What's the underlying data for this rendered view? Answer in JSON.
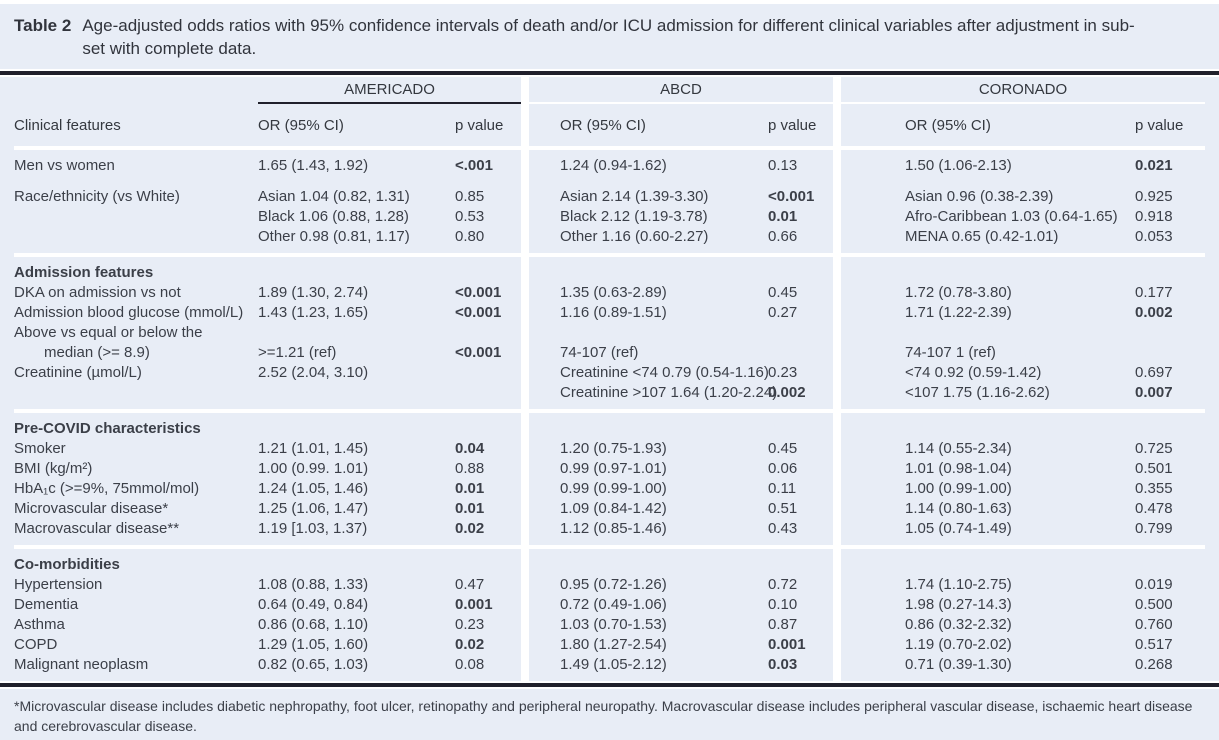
{
  "title": {
    "label": "Table 2",
    "caption": "Age-adjusted odds ratios with 95% confidence intervals of death and/or ICU admission for different clinical variables after adjustment in sub-set with complete data."
  },
  "groups": [
    "AMERICADO",
    "ABCD",
    "CORONADO"
  ],
  "columns": {
    "feature": "Clinical features",
    "or": "OR (95% CI)",
    "p": "p value"
  },
  "sections": [
    {
      "header": null,
      "rows": [
        {
          "label": "Men vs women",
          "a_or": "1.65 (1.43, 1.92)",
          "a_p": "<.001",
          "a_pb": true,
          "b_or": "1.24 (0.94-1.62)",
          "b_p": "0.13",
          "c_or": "1.50 (1.06-2.13)",
          "c_p": "0.021",
          "c_pb": true
        },
        {
          "spacer": true
        },
        {
          "label": "Race/ethnicity (vs White)",
          "a_or": "Asian 1.04 (0.82, 1.31)",
          "a_p": "0.85",
          "b_or": "Asian 2.14 (1.39-3.30)",
          "b_p": "<0.001",
          "b_pb": true,
          "c_or": "Asian 0.96 (0.38-2.39)",
          "c_p": "0.925"
        },
        {
          "label": "",
          "a_or": "Black 1.06 (0.88, 1.28)",
          "a_p": "0.53",
          "b_or": "Black 2.12 (1.19-3.78)",
          "b_p": "0.01",
          "b_pb": true,
          "c_or": "Afro-Caribbean 1.03 (0.64-1.65)",
          "c_p": "0.918"
        },
        {
          "label": "",
          "a_or": "Other 0.98 (0.81, 1.17)",
          "a_p": "0.80",
          "b_or": "Other 1.16 (0.60-2.27)",
          "b_p": "0.66",
          "c_or": "MENA 0.65 (0.42-1.01)",
          "c_p": "0.053"
        }
      ]
    },
    {
      "header": "Admission features",
      "rows": [
        {
          "label": "DKA on admission vs not",
          "a_or": "1.89 (1.30, 2.74)",
          "a_p": "<0.001",
          "a_pb": true,
          "b_or": "1.35 (0.63-2.89)",
          "b_p": "0.45",
          "c_or": "1.72 (0.78-3.80)",
          "c_p": "0.177"
        },
        {
          "label": "Admission blood glucose (mmol/L)",
          "a_or": "1.43 (1.23, 1.65)",
          "a_p": "<0.001",
          "a_pb": true,
          "b_or": "1.16 (0.89-1.51)",
          "b_p": "0.27",
          "c_or": "1.71 (1.22-2.39)",
          "c_p": "0.002",
          "c_pb": true
        },
        {
          "label": "Above vs equal or below the"
        },
        {
          "label": "median (>= 8.9)",
          "indent": true,
          "a_or": ">=1.21 (ref)",
          "a_p": "<0.001",
          "a_pb": true,
          "b_or": "74-107 (ref)",
          "c_or": "74-107 1 (ref)"
        },
        {
          "label": "Creatinine (µmol/L)",
          "a_or": "2.52 (2.04, 3.10)",
          "b_or": "Creatinine <74 0.79 (0.54-1.16)",
          "b_p": "0.23",
          "c_or": "<74 0.92 (0.59-1.42)",
          "c_p": "0.697"
        },
        {
          "label": "",
          "b_or": "Creatinine >107 1.64 (1.20-2.24)",
          "b_p": "0.002",
          "b_pb": true,
          "c_or": "<107 1.75 (1.16-2.62)",
          "c_p": "0.007",
          "c_pb": true
        }
      ]
    },
    {
      "header": "Pre-COVID characteristics",
      "rows": [
        {
          "label": "Smoker",
          "a_or": "1.21 (1.01, 1.45)",
          "a_p": "0.04",
          "a_pb": true,
          "b_or": "1.20 (0.75-1.93)",
          "b_p": "0.45",
          "c_or": "1.14 (0.55-2.34)",
          "c_p": "0.725"
        },
        {
          "label": "BMI (kg/m²)",
          "a_or": "1.00 (0.99. 1.01)",
          "a_p": "0.88",
          "b_or": "0.99 (0.97-1.01)",
          "b_p": "0.06",
          "c_or": "1.01 (0.98-1.04)",
          "c_p": "0.501"
        },
        {
          "label": "HbA₁c (>=9%, 75mmol/mol)",
          "a_or": "1.24 (1.05, 1.46)",
          "a_p": "0.01",
          "a_pb": true,
          "b_or": "0.99 (0.99-1.00)",
          "b_p": "0.11",
          "c_or": "1.00 (0.99-1.00)",
          "c_p": "0.355"
        },
        {
          "label": "Microvascular disease*",
          "a_or": "1.25 (1.06, 1.47)",
          "a_p": "0.01",
          "a_pb": true,
          "b_or": "1.09 (0.84-1.42)",
          "b_p": "0.51",
          "c_or": "1.14 (0.80-1.63)",
          "c_p": "0.478"
        },
        {
          "label": "Macrovascular disease**",
          "a_or": "1.19 [1.03, 1.37)",
          "a_p": "0.02",
          "a_pb": true,
          "b_or": "1.12 (0.85-1.46)",
          "b_p": "0.43",
          "c_or": "1.05 (0.74-1.49)",
          "c_p": "0.799"
        }
      ]
    },
    {
      "header": "Co-morbidities",
      "rows": [
        {
          "label": "Hypertension",
          "a_or": "1.08 (0.88, 1.33)",
          "a_p": "0.47",
          "b_or": "0.95 (0.72-1.26)",
          "b_p": "0.72",
          "c_or": "1.74 (1.10-2.75)",
          "c_p": "0.019"
        },
        {
          "label": "Dementia",
          "a_or": "0.64 (0.49, 0.84)",
          "a_p": "0.001",
          "a_pb": true,
          "b_or": "0.72 (0.49-1.06)",
          "b_p": "0.10",
          "c_or": "1.98 (0.27-14.3)",
          "c_p": "0.500"
        },
        {
          "label": "Asthma",
          "a_or": "0.86 (0.68, 1.10)",
          "a_p": "0.23",
          "b_or": "1.03 (0.70-1.53)",
          "b_p": "0.87",
          "c_or": "0.86 (0.32-2.32)",
          "c_p": "0.760"
        },
        {
          "label": "COPD",
          "a_or": "1.29 (1.05, 1.60)",
          "a_p": "0.02",
          "a_pb": true,
          "b_or": "1.80 (1.27-2.54)",
          "b_p": "0.001",
          "b_pb": true,
          "c_or": "1.19 (0.70-2.02)",
          "c_p": "0.517"
        },
        {
          "label": "Malignant neoplasm",
          "a_or": "0.82 (0.65, 1.03)",
          "a_p": "0.08",
          "b_or": "1.49 (1.05-2.12)",
          "b_p": "0.03",
          "b_pb": true,
          "c_or": "0.71 (0.39-1.30)",
          "c_p": "0.268"
        }
      ]
    }
  ],
  "footnote": "*Microvascular disease includes diabetic nephropathy, foot ulcer, retinopathy and peripheral neuropathy. Macrovascular disease includes peripheral vascular disease, ischaemic heart disease and cerebrovascular disease.",
  "colors": {
    "panel": "#e8edf6",
    "rule": "#20202b",
    "text": "#3b3f48"
  }
}
